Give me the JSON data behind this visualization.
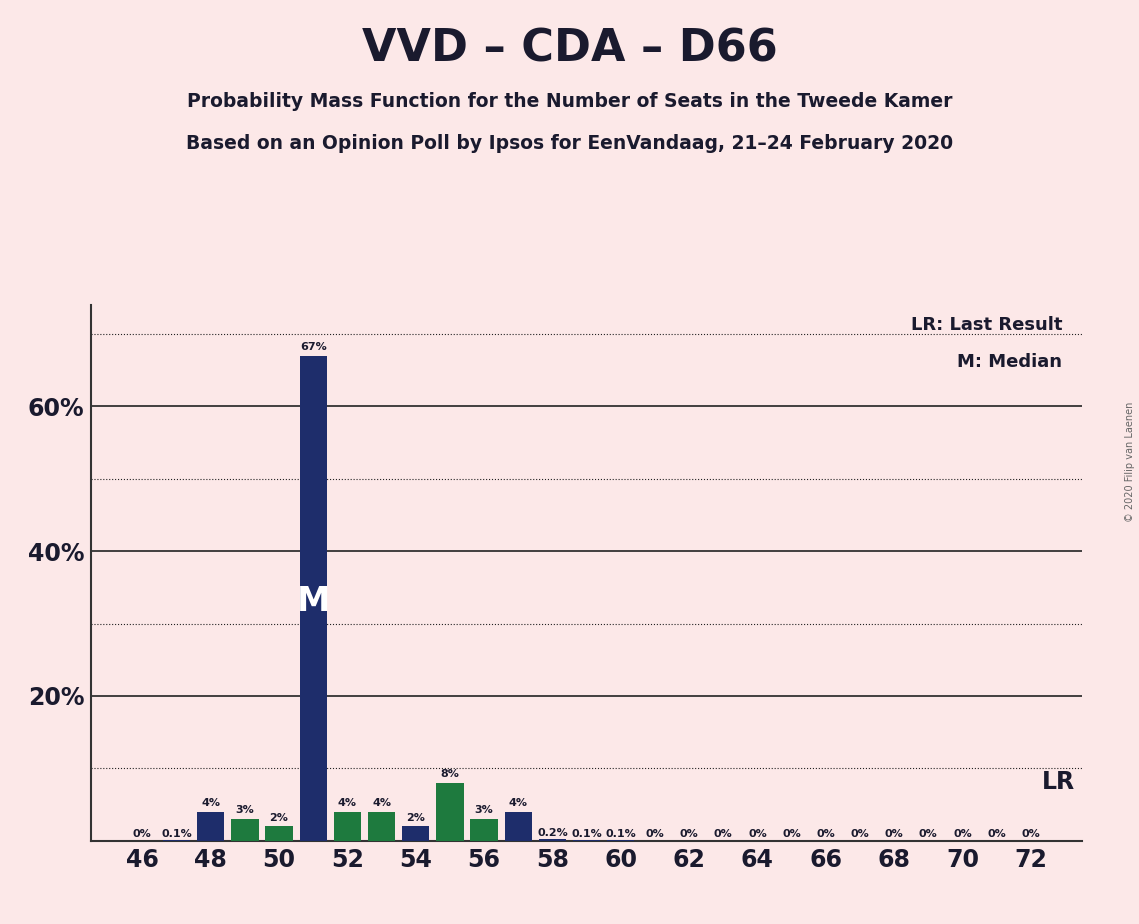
{
  "title": "VVD – CDA – D66",
  "subtitle1": "Probability Mass Function for the Number of Seats in the Tweede Kamer",
  "subtitle2": "Based on an Opinion Poll by Ipsos for EenVandaag, 21–24 February 2020",
  "copyright": "© 2020 Filip van Laenen",
  "legend_lr": "LR: Last Result",
  "legend_m": "M: Median",
  "background_color": "#fce8e8",
  "seats": [
    46,
    47,
    48,
    49,
    50,
    51,
    52,
    53,
    54,
    55,
    56,
    57,
    58,
    59,
    60,
    61,
    62,
    63,
    64,
    65,
    66,
    67,
    68,
    69,
    70,
    71,
    72
  ],
  "values": [
    0.0,
    0.1,
    4.0,
    3.0,
    2.0,
    67.0,
    4.0,
    4.0,
    2.0,
    8.0,
    3.0,
    4.0,
    0.2,
    0.1,
    0.1,
    0.0,
    0.0,
    0.0,
    0.0,
    0.0,
    0.0,
    0.0,
    0.0,
    0.0,
    0.0,
    0.0,
    0.0
  ],
  "bar_colors": [
    "#1e2d6b",
    "#1e2d6b",
    "#1e2d6b",
    "#1e7a3e",
    "#1e7a3e",
    "#1e2d6b",
    "#1e7a3e",
    "#1e7a3e",
    "#1e2d6b",
    "#1e7a3e",
    "#1e7a3e",
    "#1e2d6b",
    "#1e2d6b",
    "#1e2d6b",
    "#1e2d6b",
    "#1e2d6b",
    "#1e2d6b",
    "#1e2d6b",
    "#1e2d6b",
    "#1e2d6b",
    "#1e2d6b",
    "#1e2d6b",
    "#1e2d6b",
    "#1e2d6b",
    "#1e2d6b",
    "#1e2d6b",
    "#1e2d6b"
  ],
  "labels": [
    "0%",
    "0.1%",
    "4%",
    "3%",
    "2%",
    "67%",
    "4%",
    "4%",
    "2%",
    "8%",
    "3%",
    "4%",
    "0.2%",
    "0.1%",
    "0.1%",
    "0%",
    "0%",
    "0%",
    "0%",
    "0%",
    "0%",
    "0%",
    "0%",
    "0%",
    "0%",
    "0%",
    "0%"
  ],
  "median_seat": 51,
  "lr_value": 10.0,
  "xlabel_seats": [
    46,
    48,
    50,
    52,
    54,
    56,
    58,
    60,
    62,
    64,
    66,
    68,
    70,
    72
  ],
  "dark_navy": "#1e2d6b",
  "green": "#1e7a3e",
  "text_color": "#1a1a2e"
}
